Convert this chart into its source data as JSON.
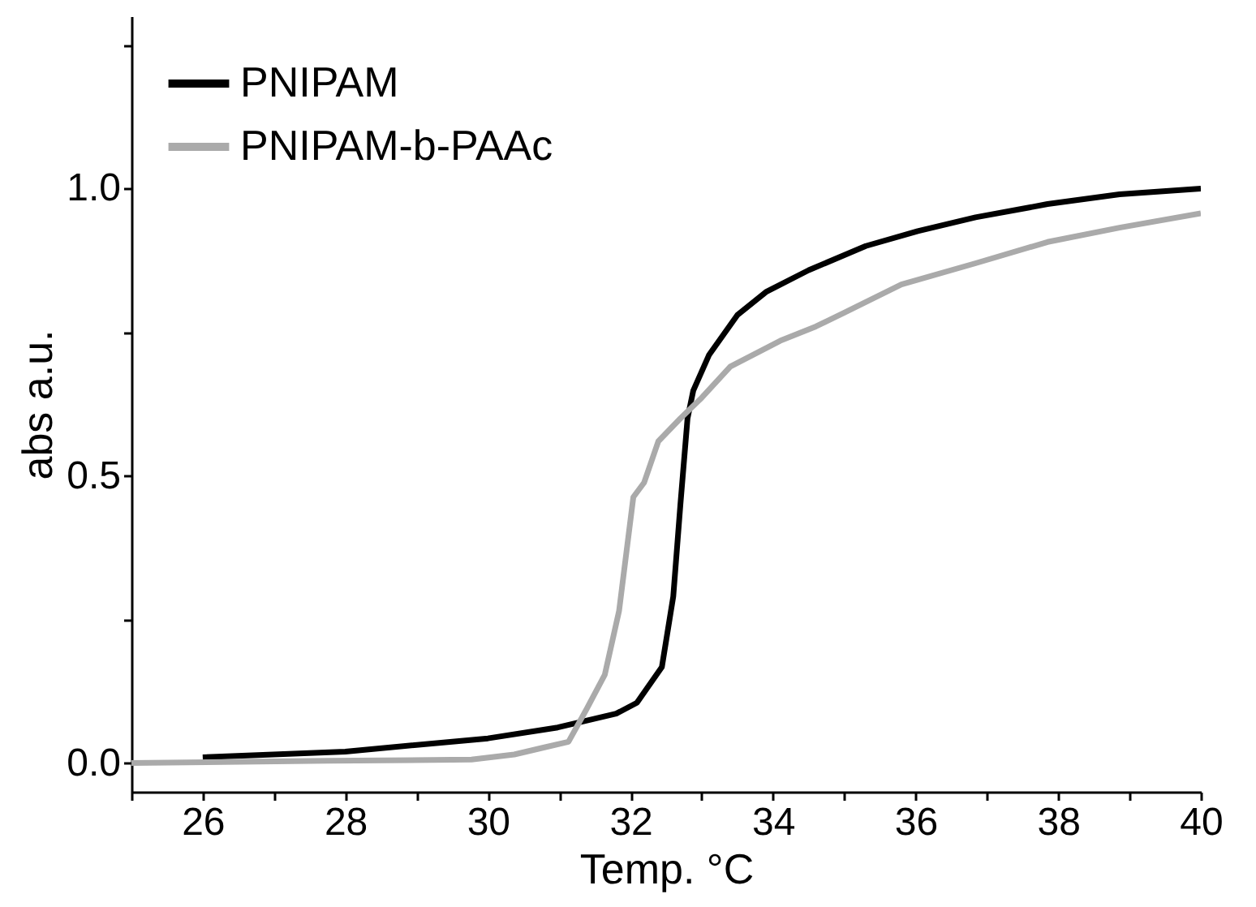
{
  "chart_data": {
    "type": "line",
    "xlabel": "Temp. °C",
    "ylabel": "abs  a.u.",
    "xlim": [
      25,
      40
    ],
    "ylim": [
      -0.05,
      1.3
    ],
    "xticks": [
      {
        "value": 25,
        "label": null
      },
      26,
      {
        "value": 27,
        "label": null
      },
      28,
      {
        "value": 29,
        "label": null
      },
      30,
      {
        "value": 31,
        "label": null
      },
      32,
      {
        "value": 33,
        "label": null
      },
      34,
      {
        "value": 35,
        "label": null
      },
      36,
      {
        "value": 37,
        "label": null
      },
      38,
      {
        "value": 39,
        "label": null
      },
      40
    ],
    "yticks": [
      {
        "value": 0,
        "label": "0.0"
      },
      {
        "value": 0.25,
        "label": null
      },
      {
        "value": 0.5,
        "label": "0.5"
      },
      {
        "value": 0.75,
        "label": null
      },
      {
        "value": 1.0,
        "label": "1.0"
      },
      {
        "value": 1.25,
        "label": null
      }
    ],
    "grid": false,
    "legend": "top left",
    "line_style": "solid",
    "marker": "none",
    "series": [
      {
        "name": "PNIPAM",
        "color": "#000000",
        "x": [
          26,
          28,
          30,
          30.98,
          31.8,
          32.09,
          32.44,
          32.6,
          32.7,
          32.8,
          32.88,
          33.1,
          33.5,
          33.9,
          34.5,
          35.3,
          36.03,
          36.84,
          37.85,
          38.86,
          40
        ],
        "values": [
          0.01,
          0.02,
          0.043,
          0.062,
          0.086,
          0.105,
          0.167,
          0.29,
          0.45,
          0.6,
          0.648,
          0.71,
          0.78,
          0.82,
          0.858,
          0.9,
          0.926,
          0.95,
          0.973,
          0.99,
          1.0
        ]
      },
      {
        "name": "PNIPAM-b-PAAc",
        "color": "#aaaaaa",
        "x": [
          25,
          27.75,
          29.77,
          30.37,
          30.78,
          31.13,
          31.38,
          31.64,
          31.84,
          32.04,
          32.19,
          32.39,
          32.7,
          33.0,
          33.4,
          34.1,
          34.6,
          35.0,
          35.8,
          36.84,
          37.85,
          38.86,
          40
        ],
        "values": [
          0,
          0.004,
          0.006,
          0.015,
          0.027,
          0.037,
          0.093,
          0.154,
          0.265,
          0.463,
          0.488,
          0.56,
          0.6,
          0.636,
          0.69,
          0.735,
          0.76,
          0.784,
          0.833,
          0.87,
          0.907,
          0.932,
          0.957
        ]
      }
    ]
  }
}
